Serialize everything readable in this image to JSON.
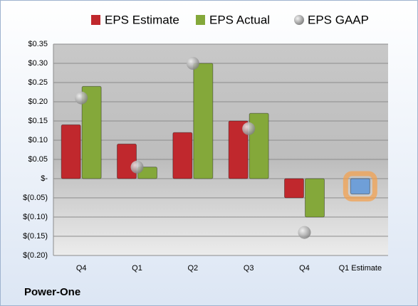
{
  "chart_data": {
    "type": "bar",
    "categories": [
      "Q4",
      "Q1",
      "Q2",
      "Q3",
      "Q4",
      "Q1 Estimate"
    ],
    "series": [
      {
        "name": "EPS Estimate",
        "color": "#c0282d",
        "colors": [
          "#c0282d",
          "#c0282d",
          "#c0282d",
          "#c0282d",
          "#c0282d",
          "#6f9fd8"
        ],
        "values": [
          0.14,
          0.09,
          0.12,
          0.15,
          -0.05,
          -0.04
        ]
      },
      {
        "name": "EPS Actual",
        "color": "#84a83a",
        "values": [
          0.24,
          0.03,
          0.3,
          0.17,
          -0.1,
          null
        ]
      },
      {
        "name": "EPS GAAP",
        "color": "#a6a6a6",
        "marker": "circle",
        "values": [
          0.21,
          0.03,
          0.3,
          0.13,
          -0.14,
          null
        ]
      }
    ],
    "ylim": [
      -0.2,
      0.35
    ],
    "yticks": [
      {
        "value": 0.35,
        "label": "$0.35"
      },
      {
        "value": 0.3,
        "label": "$0.30"
      },
      {
        "value": 0.25,
        "label": "$0.25"
      },
      {
        "value": 0.2,
        "label": "$0.20"
      },
      {
        "value": 0.15,
        "label": "$0.15"
      },
      {
        "value": 0.1,
        "label": "$0.10"
      },
      {
        "value": 0.05,
        "label": "$0.05"
      },
      {
        "value": 0,
        "label": "$-"
      },
      {
        "value": -0.05,
        "label": "$(0.05)"
      },
      {
        "value": -0.1,
        "label": "$(0.10)"
      },
      {
        "value": -0.15,
        "label": "$(0.15)"
      },
      {
        "value": -0.2,
        "label": "$(0.20)"
      }
    ],
    "grid": true,
    "legend": "top",
    "footer": "Power-One"
  }
}
